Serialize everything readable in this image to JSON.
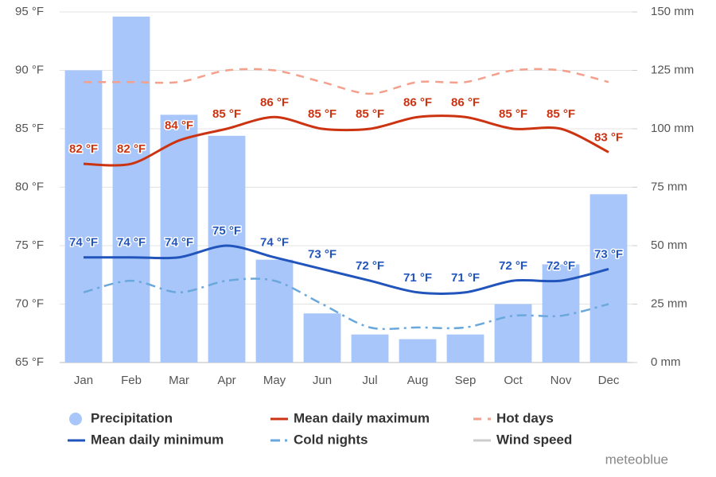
{
  "chart_data": {
    "type": "combo",
    "categories": [
      "Jan",
      "Feb",
      "Mar",
      "Apr",
      "May",
      "Jun",
      "Jul",
      "Aug",
      "Sep",
      "Oct",
      "Nov",
      "Dec"
    ],
    "ylim": [
      65,
      95
    ],
    "yticks": [
      {
        "value": 65,
        "label": "65 °F"
      },
      {
        "value": 70,
        "label": "70 °F"
      },
      {
        "value": 75,
        "label": "75 °F"
      },
      {
        "value": 80,
        "label": "80 °F"
      },
      {
        "value": 85,
        "label": "85 °F"
      },
      {
        "value": 90,
        "label": "90 °F"
      },
      {
        "value": 95,
        "label": "95 °F"
      }
    ],
    "y2lim": [
      0,
      150
    ],
    "y2ticks": [
      {
        "value": 0,
        "label": "0 mm"
      },
      {
        "value": 25,
        "label": "25 mm"
      },
      {
        "value": 50,
        "label": "50 mm"
      },
      {
        "value": 75,
        "label": "75 mm"
      },
      {
        "value": 100,
        "label": "100 mm"
      },
      {
        "value": 125,
        "label": "125 mm"
      },
      {
        "value": 150,
        "label": "150 mm"
      }
    ],
    "grid": true,
    "series": [
      {
        "name": "Precipitation",
        "type": "bar",
        "axis": "y2",
        "color": "#a8c6fa",
        "values": [
          125,
          148,
          106,
          97,
          44,
          21,
          12,
          10,
          12,
          25,
          42,
          72
        ]
      },
      {
        "name": "Mean daily maximum",
        "type": "line",
        "color": "#cc3311",
        "style": "solid",
        "values": [
          82,
          82,
          84,
          85,
          86,
          85,
          85,
          86,
          86,
          85,
          85,
          83
        ],
        "value_labels": [
          "82 °F",
          "82 °F",
          "84 °F",
          "85 °F",
          "86 °F",
          "85 °F",
          "85 °F",
          "86 °F",
          "86 °F",
          "85 °F",
          "85 °F",
          "83 °F"
        ]
      },
      {
        "name": "Hot days",
        "type": "line",
        "color": "#f4a08c",
        "style": "dash",
        "values": [
          89,
          89,
          89,
          90,
          90,
          89,
          88,
          89,
          89,
          90,
          90,
          89
        ]
      },
      {
        "name": "Mean daily minimum",
        "type": "line",
        "color": "#2255bb",
        "style": "solid",
        "values": [
          74,
          74,
          74,
          75,
          74,
          73,
          72,
          71,
          71,
          72,
          72,
          73
        ],
        "value_labels": [
          "74 °F",
          "74 °F",
          "74 °F",
          "75 °F",
          "74 °F",
          "73 °F",
          "72 °F",
          "71 °F",
          "71 °F",
          "72 °F",
          "72 °F",
          "73 °F"
        ]
      },
      {
        "name": "Cold nights",
        "type": "line",
        "color": "#6aa8dc",
        "style": "dashdot",
        "values": [
          71,
          72,
          71,
          72,
          72,
          70,
          68,
          68,
          68,
          69,
          69,
          70
        ]
      },
      {
        "name": "Wind speed",
        "type": "line",
        "color": "#cccccc",
        "style": "solid",
        "visible": false,
        "values": [
          null,
          null,
          null,
          null,
          null,
          null,
          null,
          null,
          null,
          null,
          null,
          null
        ]
      }
    ],
    "credit": "meteoblue"
  }
}
